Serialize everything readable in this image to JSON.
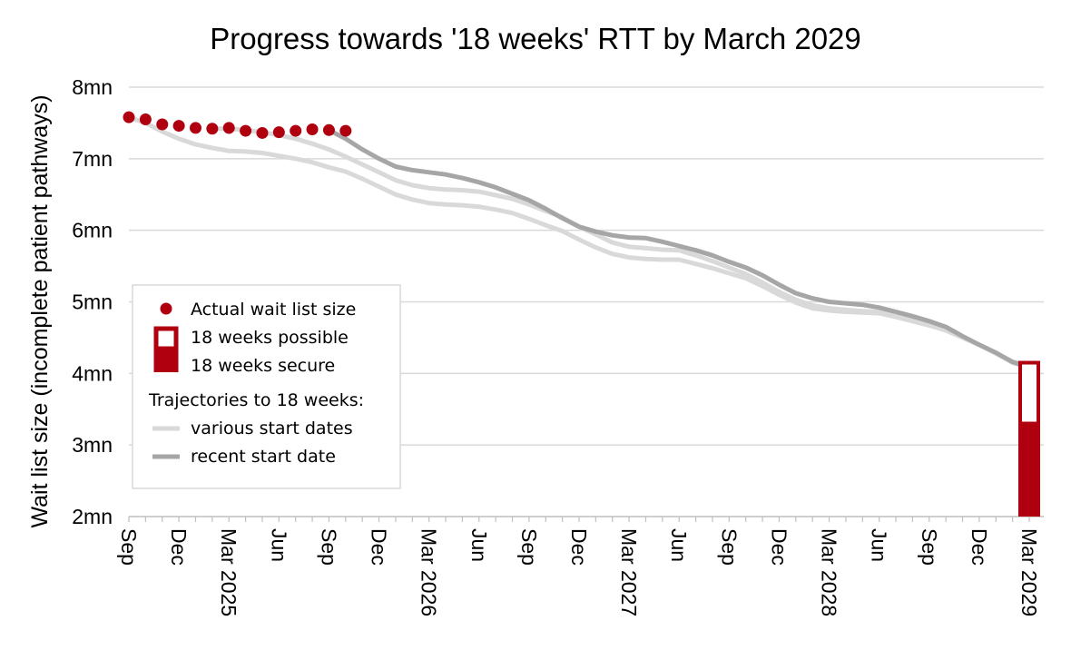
{
  "chart_data": {
    "type": "line",
    "title": "Progress towards '18 weeks' RTT by March 2029",
    "ylabel": "Wait list size (incomplete patient pathways)",
    "xlabel": "",
    "ylim": [
      2,
      8
    ],
    "y_ticks": [
      {
        "value": 2,
        "label": "2mn"
      },
      {
        "value": 3,
        "label": "3mn"
      },
      {
        "value": 4,
        "label": "4mn"
      },
      {
        "value": 5,
        "label": "5mn"
      },
      {
        "value": 6,
        "label": "6mn"
      },
      {
        "value": 7,
        "label": "7mn"
      },
      {
        "value": 8,
        "label": "8mn"
      }
    ],
    "x_range": [
      "2024-09",
      "2029-03"
    ],
    "x_ticks": [
      {
        "month": "2024-09",
        "label": "Sep"
      },
      {
        "month": "2024-12",
        "label": "Dec"
      },
      {
        "month": "2025-03",
        "label": "Mar 2025"
      },
      {
        "month": "2025-06",
        "label": "Jun"
      },
      {
        "month": "2025-09",
        "label": "Sep"
      },
      {
        "month": "2025-12",
        "label": "Dec"
      },
      {
        "month": "2026-03",
        "label": "Mar 2026"
      },
      {
        "month": "2026-06",
        "label": "Jun"
      },
      {
        "month": "2026-09",
        "label": "Sep"
      },
      {
        "month": "2026-12",
        "label": "Dec"
      },
      {
        "month": "2027-03",
        "label": "Mar 2027"
      },
      {
        "month": "2027-06",
        "label": "Jun"
      },
      {
        "month": "2027-09",
        "label": "Sep"
      },
      {
        "month": "2027-12",
        "label": "Dec"
      },
      {
        "month": "2028-03",
        "label": "Mar 2028"
      },
      {
        "month": "2028-06",
        "label": "Jun"
      },
      {
        "month": "2028-09",
        "label": "Sep"
      },
      {
        "month": "2028-12",
        "label": "Dec"
      },
      {
        "month": "2029-03",
        "label": "Mar 2029"
      }
    ],
    "grid": "horizontal",
    "legend": {
      "position": "left",
      "actual": "Actual wait list size",
      "possible": "18 weeks possible",
      "secure": "18 weeks secure",
      "trajectories_heading": "Trajectories to 18 weeks:",
      "various": "various start dates",
      "recent": "recent start date"
    },
    "colors": {
      "actual": "#b0000f",
      "various": "#d9d9d9",
      "recent": "#a6a6a6",
      "grid": "#d9d9d9",
      "axis": "#bfbfbf"
    },
    "actual": {
      "name": "Actual wait list size",
      "x": [
        "2024-09",
        "2024-10",
        "2024-11",
        "2024-12",
        "2025-01",
        "2025-02",
        "2025-03",
        "2025-04",
        "2025-05",
        "2025-06",
        "2025-07",
        "2025-08",
        "2025-09",
        "2025-10"
      ],
      "y": [
        7.58,
        7.55,
        7.48,
        7.46,
        7.43,
        7.42,
        7.43,
        7.39,
        7.36,
        7.37,
        7.39,
        7.41,
        7.4,
        7.39
      ]
    },
    "various_series": [
      {
        "x": [
          "2024-09",
          "2024-10",
          "2024-11",
          "2024-12",
          "2025-01",
          "2025-02",
          "2025-03",
          "2025-04",
          "2025-05",
          "2025-06",
          "2025-07",
          "2025-08",
          "2025-09",
          "2025-10",
          "2025-11",
          "2025-12",
          "2026-01",
          "2026-02",
          "2026-03",
          "2026-04",
          "2026-05",
          "2026-06",
          "2026-07",
          "2026-08",
          "2026-09",
          "2026-10",
          "2026-11",
          "2026-12",
          "2027-01",
          "2027-02",
          "2027-03",
          "2027-04",
          "2027-05",
          "2027-06",
          "2027-07",
          "2027-08",
          "2027-09",
          "2027-10",
          "2027-11",
          "2027-12",
          "2028-01",
          "2028-02",
          "2028-03",
          "2028-04",
          "2028-05",
          "2028-06",
          "2028-07",
          "2028-08",
          "2028-09",
          "2028-10",
          "2028-11",
          "2028-12",
          "2029-01",
          "2029-02",
          "2029-03"
        ],
        "y": [
          7.58,
          7.5,
          7.38,
          7.28,
          7.2,
          7.15,
          7.11,
          7.1,
          7.08,
          7.04,
          7.0,
          6.95,
          6.88,
          6.82,
          6.72,
          6.61,
          6.5,
          6.43,
          6.38,
          6.36,
          6.35,
          6.33,
          6.29,
          6.24,
          6.16,
          6.07,
          5.99,
          5.87,
          5.76,
          5.67,
          5.62,
          5.6,
          5.59,
          5.59,
          5.53,
          5.47,
          5.4,
          5.33,
          5.22,
          5.1,
          4.99,
          4.91,
          4.88,
          4.86,
          4.85,
          4.84,
          4.79,
          4.73,
          4.67,
          4.6,
          4.5,
          4.4,
          4.28,
          4.15,
          4.08
        ]
      },
      {
        "x": [
          "2025-02",
          "2025-03",
          "2025-04",
          "2025-05",
          "2025-06",
          "2025-07",
          "2025-08",
          "2025-09",
          "2025-10",
          "2025-11",
          "2025-12",
          "2026-01",
          "2026-02",
          "2026-03",
          "2026-04",
          "2026-05",
          "2026-06",
          "2026-07",
          "2026-08",
          "2026-09",
          "2026-10",
          "2026-11",
          "2026-12",
          "2027-01",
          "2027-02",
          "2027-03",
          "2027-04",
          "2027-05",
          "2027-06",
          "2027-07",
          "2027-08",
          "2027-09",
          "2027-10",
          "2027-11",
          "2027-12",
          "2028-01",
          "2028-02",
          "2028-03",
          "2028-04",
          "2028-05",
          "2028-06",
          "2028-07",
          "2028-08",
          "2028-09",
          "2028-10",
          "2028-11",
          "2028-12",
          "2029-01",
          "2029-02",
          "2029-03"
        ],
        "y": [
          7.42,
          7.42,
          7.4,
          7.37,
          7.33,
          7.28,
          7.21,
          7.13,
          7.03,
          6.92,
          6.81,
          6.7,
          6.63,
          6.59,
          6.57,
          6.56,
          6.54,
          6.49,
          6.44,
          6.36,
          6.27,
          6.18,
          6.05,
          5.94,
          5.83,
          5.77,
          5.75,
          5.73,
          5.72,
          5.65,
          5.57,
          5.48,
          5.39,
          5.27,
          5.14,
          5.03,
          4.95,
          4.91,
          4.89,
          4.87,
          4.86,
          4.81,
          4.75,
          4.69,
          4.61,
          4.51,
          4.4,
          4.28,
          4.16,
          4.09
        ]
      }
    ],
    "recent": {
      "name": "recent start date",
      "x": [
        "2025-09",
        "2025-10",
        "2025-11",
        "2025-12",
        "2026-01",
        "2026-02",
        "2026-03",
        "2026-04",
        "2026-05",
        "2026-06",
        "2026-07",
        "2026-08",
        "2026-09",
        "2026-10",
        "2026-11",
        "2026-12",
        "2027-01",
        "2027-02",
        "2027-03",
        "2027-04",
        "2027-05",
        "2027-06",
        "2027-07",
        "2027-08",
        "2027-09",
        "2027-10",
        "2027-11",
        "2027-12",
        "2028-01",
        "2028-02",
        "2028-03",
        "2028-04",
        "2028-05",
        "2028-06",
        "2028-07",
        "2028-08",
        "2028-09",
        "2028-10",
        "2028-11",
        "2028-12",
        "2029-01",
        "2029-02",
        "2029-03"
      ],
      "y": [
        7.4,
        7.28,
        7.13,
        7.0,
        6.89,
        6.84,
        6.81,
        6.78,
        6.73,
        6.67,
        6.6,
        6.51,
        6.42,
        6.3,
        6.17,
        6.05,
        5.98,
        5.93,
        5.9,
        5.89,
        5.84,
        5.78,
        5.72,
        5.65,
        5.56,
        5.48,
        5.37,
        5.24,
        5.12,
        5.05,
        5.0,
        4.98,
        4.96,
        4.92,
        4.86,
        4.8,
        4.73,
        4.65,
        4.52,
        4.4,
        4.29,
        4.16,
        4.09
      ]
    },
    "target_bar": {
      "month": "2029-03",
      "secure": 3.3,
      "possible": 4.15
    }
  }
}
